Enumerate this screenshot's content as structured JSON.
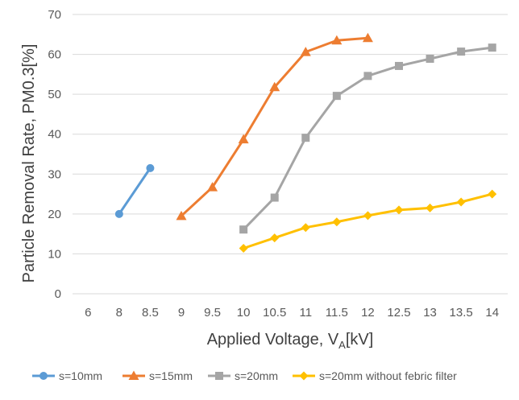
{
  "chart_data": {
    "type": "line",
    "title": "",
    "xlabel": {
      "main": "Applied Voltage, V",
      "sub": "A",
      "unit": "[kV]"
    },
    "ylabel": "Particle Removal Rate, PM0.3[%]",
    "categories": [
      "6",
      "8",
      "8.5",
      "9",
      "9.5",
      "10",
      "10.5",
      "11",
      "11.5",
      "12",
      "12.5",
      "13",
      "13.5",
      "14"
    ],
    "ylim": [
      0,
      70
    ],
    "yticks": [
      0,
      10,
      20,
      30,
      40,
      50,
      60,
      70
    ],
    "grid": true,
    "legend_position": "bottom",
    "series": [
      {
        "name": "s=10mm",
        "color": "#5B9BD5",
        "marker": "circle",
        "points": [
          {
            "x": "8",
            "y": 20
          },
          {
            "x": "8.5",
            "y": 31.5
          }
        ]
      },
      {
        "name": "s=15mm",
        "color": "#ED7D31",
        "marker": "triangle",
        "points": [
          {
            "x": "9",
            "y": 19.5
          },
          {
            "x": "9.5",
            "y": 26.7
          },
          {
            "x": "10",
            "y": 38.7
          },
          {
            "x": "10.5",
            "y": 51.8
          },
          {
            "x": "11",
            "y": 60.6
          },
          {
            "x": "11.5",
            "y": 63.5
          },
          {
            "x": "12",
            "y": 64.1
          }
        ]
      },
      {
        "name": "s=20mm",
        "color": "#A5A5A5",
        "marker": "square",
        "points": [
          {
            "x": "10",
            "y": 16.1
          },
          {
            "x": "10.5",
            "y": 24.1
          },
          {
            "x": "11",
            "y": 39.1
          },
          {
            "x": "11.5",
            "y": 49.6
          },
          {
            "x": "12",
            "y": 54.6
          },
          {
            "x": "12.5",
            "y": 57.1
          },
          {
            "x": "13",
            "y": 58.9
          },
          {
            "x": "13.5",
            "y": 60.7
          },
          {
            "x": "14",
            "y": 61.7
          }
        ]
      },
      {
        "name": "s=20mm without febric filter",
        "color": "#FFC000",
        "marker": "diamond",
        "points": [
          {
            "x": "10",
            "y": 11.4
          },
          {
            "x": "10.5",
            "y": 14
          },
          {
            "x": "11",
            "y": 16.6
          },
          {
            "x": "11.5",
            "y": 18
          },
          {
            "x": "12",
            "y": 19.6
          },
          {
            "x": "12.5",
            "y": 21
          },
          {
            "x": "13",
            "y": 21.5
          },
          {
            "x": "13.5",
            "y": 23
          },
          {
            "x": "14",
            "y": 25
          }
        ]
      }
    ]
  }
}
